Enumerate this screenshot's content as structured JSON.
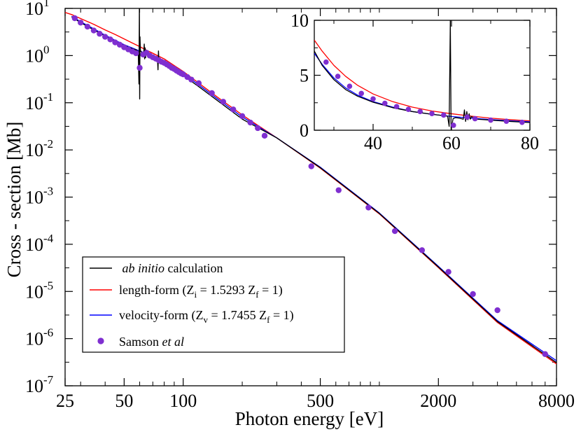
{
  "chart_data": [
    {
      "type": "line",
      "xlabel": "Photon energy [eV]",
      "ylabel": "Cross - section [Mb]",
      "xscale": "log",
      "yscale": "log",
      "xlim": [
        25,
        8000
      ],
      "ylim": [
        1e-07,
        10
      ],
      "x_ticks": [
        25,
        50,
        100,
        500,
        2000,
        8000
      ],
      "y_ticks": [
        {
          "base": "10",
          "exp": "1",
          "value": 10
        },
        {
          "base": "10",
          "exp": "0",
          "value": 1
        },
        {
          "base": "10",
          "exp": "-1",
          "value": 0.1
        },
        {
          "base": "10",
          "exp": "-2",
          "value": 0.01
        },
        {
          "base": "10",
          "exp": "-3",
          "value": 0.001
        },
        {
          "base": "10",
          "exp": "-4",
          "value": 0.0001
        },
        {
          "base": "10",
          "exp": "-5",
          "value": 1e-05
        },
        {
          "base": "10",
          "exp": "-6",
          "value": 1e-06
        },
        {
          "base": "10",
          "exp": "-7",
          "value": 1e-07
        }
      ],
      "grid": false,
      "legend_position": "bottom-left",
      "legend": [
        {
          "pre": "",
          "italic": "ab initio",
          "post": " calculation",
          "sub1": "",
          "mid": "",
          "sub2": "",
          "end": ""
        },
        {
          "pre": "length-form    (Z",
          "italic": "",
          "post": "",
          "sub1": "i",
          "mid": " = 1.5293  Z",
          "sub2": "f",
          "end": " = 1)"
        },
        {
          "pre": "velocity-form (Z",
          "italic": "",
          "post": "",
          "sub1": "v",
          "mid": " = 1.7455 Z",
          "sub2": "f",
          "end": " = 1)"
        },
        {
          "pre": "Samson ",
          "italic": "et al",
          "post": "",
          "sub1": "",
          "mid": "",
          "sub2": "",
          "end": ""
        }
      ],
      "series": [
        {
          "name": "ab initio calculation",
          "color": "#000000",
          "x": [
            27,
            30,
            35,
            40,
            45,
            50,
            55,
            58,
            59,
            59.5,
            59.8,
            60,
            60.2,
            60.5,
            61,
            62,
            63,
            63.3,
            63.6,
            64,
            64.3,
            64.6,
            65,
            66,
            70,
            74,
            74.4,
            74.8,
            75.2,
            78,
            85,
            100,
            120,
            150,
            200,
            300,
            500,
            1000,
            2000,
            4000,
            8000
          ],
          "y": [
            6.6,
            5.0,
            3.5,
            2.6,
            2.0,
            1.65,
            1.4,
            1.3,
            1.2,
            0.25,
            11.0,
            0.12,
            2.5,
            1.3,
            1.2,
            1.15,
            1.2,
            1.75,
            0.85,
            1.45,
            0.9,
            1.3,
            1.1,
            1.07,
            0.92,
            0.8,
            0.5,
            1.25,
            0.75,
            0.74,
            0.57,
            0.38,
            0.22,
            0.11,
            0.045,
            0.018,
            0.0042,
            0.00045,
            3.3e-05,
            2.3e-06,
            3.1e-07
          ]
        },
        {
          "name": "length-form",
          "color": "#ff0000",
          "x": [
            25,
            27,
            30,
            35,
            40,
            45,
            50,
            55,
            60,
            65,
            70,
            75,
            80,
            100,
            150,
            200,
            300,
            500,
            1000,
            2000,
            4000,
            8000
          ],
          "y": [
            8.2,
            7.4,
            6.1,
            4.6,
            3.5,
            2.8,
            2.25,
            1.85,
            1.55,
            1.3,
            1.12,
            0.97,
            0.85,
            0.46,
            0.13,
            0.055,
            0.018,
            0.0041,
            0.00044,
            3.2e-05,
            2.2e-06,
            2.9e-07
          ]
        },
        {
          "name": "velocity-form",
          "color": "#0000ff",
          "x": [
            27,
            30,
            35,
            40,
            45,
            50,
            55,
            60,
            65,
            70,
            75,
            80,
            100,
            150,
            200,
            300,
            500,
            1000,
            2000,
            4000,
            8000
          ],
          "y": [
            6.8,
            5.2,
            3.7,
            2.7,
            2.1,
            1.7,
            1.45,
            1.25,
            1.1,
            0.97,
            0.86,
            0.77,
            0.42,
            0.12,
            0.05,
            0.018,
            0.0043,
            0.00046,
            3.4e-05,
            2.4e-06,
            3.4e-07
          ]
        },
        {
          "name": "Samson et al",
          "color": "#7f2fd0",
          "type": "scatter",
          "x": [
            28,
            30,
            32.5,
            35,
            37.5,
            40,
            42.5,
            45,
            47.5,
            50,
            52.5,
            55,
            57.5,
            60,
            62.5,
            65,
            67.5,
            70,
            72.5,
            75,
            77.5,
            80,
            82.5,
            85,
            87.5,
            90,
            92.5,
            95,
            97.5,
            100,
            105,
            110,
            120,
            140,
            160,
            180,
            200,
            220,
            240,
            260,
            450,
            620,
            880,
            1200,
            1650,
            2250,
            3000,
            4000,
            7000
          ],
          "y": [
            6.2,
            5.0,
            4.1,
            3.4,
            2.9,
            2.5,
            2.2,
            1.9,
            1.7,
            1.5,
            1.35,
            1.22,
            1.12,
            0.55,
            1.05,
            1.15,
            1.0,
            0.92,
            0.86,
            0.8,
            0.74,
            0.7,
            0.65,
            0.6,
            0.55,
            0.52,
            0.48,
            0.45,
            0.42,
            0.4,
            0.35,
            0.31,
            0.26,
            0.16,
            0.105,
            0.072,
            0.052,
            0.038,
            0.029,
            0.02,
            0.0045,
            0.0014,
            0.0006,
            0.00019,
            7.5e-05,
            2.6e-05,
            8.8e-06,
            4e-06,
            4.7e-07
          ]
        }
      ]
    },
    {
      "type": "line",
      "position": "top-right inset",
      "xlim": [
        25,
        80
      ],
      "ylim": [
        0,
        10
      ],
      "x_ticks": [
        40,
        60,
        80
      ],
      "y_ticks": [
        0,
        5,
        10
      ],
      "series": [
        {
          "name": "ab initio calculation",
          "color": "#000000",
          "x": [
            25,
            27,
            30,
            33,
            36,
            40,
            45,
            50,
            55,
            58,
            59,
            59.4,
            59.7,
            59.9,
            60.1,
            60.4,
            61,
            62,
            63,
            63.3,
            63.6,
            63.9,
            64.2,
            64.5,
            64.8,
            65.1,
            66,
            70,
            75,
            80
          ],
          "y": [
            7.2,
            5.9,
            4.6,
            3.7,
            3.1,
            2.55,
            2.05,
            1.7,
            1.45,
            1.33,
            1.28,
            0.35,
            10.0,
            0.05,
            0.45,
            1.05,
            1.15,
            1.1,
            1.0,
            1.85,
            0.8,
            1.7,
            0.95,
            1.5,
            1.0,
            1.25,
            1.02,
            0.92,
            0.8,
            0.7
          ]
        },
        {
          "name": "length-form",
          "color": "#ff0000",
          "x": [
            25,
            27,
            30,
            33,
            36,
            40,
            45,
            50,
            55,
            60,
            65,
            70,
            75,
            80
          ],
          "y": [
            8.2,
            7.2,
            5.9,
            4.9,
            4.1,
            3.3,
            2.6,
            2.1,
            1.75,
            1.5,
            1.28,
            1.1,
            0.96,
            0.85
          ]
        },
        {
          "name": "velocity-form",
          "color": "#0000ff",
          "x": [
            25,
            27,
            30,
            33,
            36,
            40,
            45,
            50,
            55,
            60,
            65,
            70,
            75,
            80
          ],
          "y": [
            7.0,
            6.0,
            4.75,
            3.85,
            3.2,
            2.6,
            2.1,
            1.7,
            1.45,
            1.25,
            1.1,
            0.97,
            0.86,
            0.77
          ]
        },
        {
          "name": "Samson et al",
          "color": "#7f2fd0",
          "type": "scatter",
          "x": [
            28,
            31,
            34,
            37,
            40,
            43,
            46,
            49,
            52,
            55,
            58,
            60.5,
            64,
            66,
            70,
            74,
            78
          ],
          "y": [
            6.2,
            4.9,
            4.0,
            3.35,
            2.85,
            2.45,
            2.15,
            1.9,
            1.7,
            1.52,
            1.38,
            0.45,
            1.2,
            1.05,
            0.92,
            0.82,
            0.72
          ]
        }
      ]
    }
  ]
}
